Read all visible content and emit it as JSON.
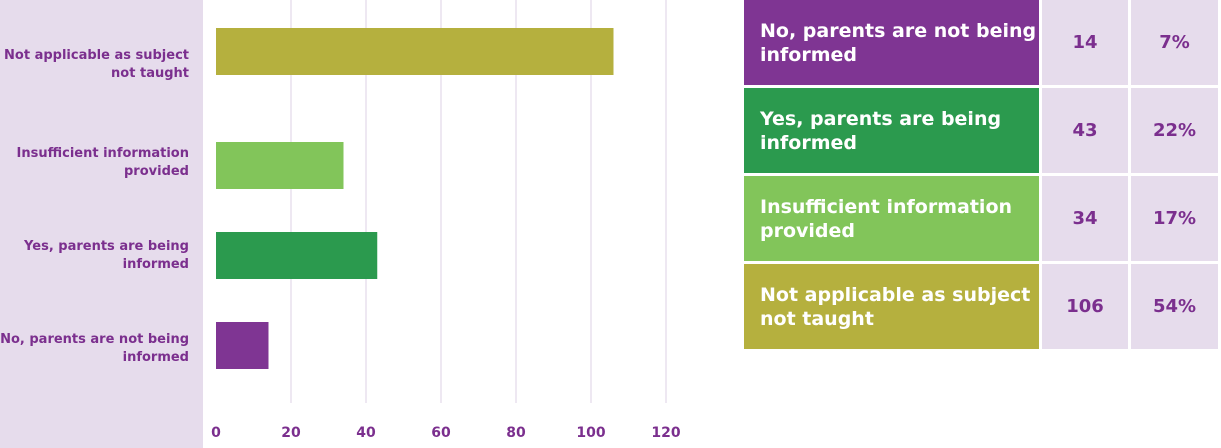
{
  "chart_data": {
    "type": "bar",
    "orientation": "horizontal",
    "categories": [
      "Not applicable as subject not taught",
      "Insufficient information provided",
      "Yes, parents are being informed",
      "No, parents are not being informed"
    ],
    "values": [
      106,
      34,
      43,
      14
    ],
    "colors": [
      "#b5b03e",
      "#82c55a",
      "#2b9a4e",
      "#7f3593"
    ],
    "xlim": [
      0,
      120
    ],
    "x_ticks": [
      0,
      20,
      40,
      60,
      80,
      100,
      120
    ],
    "grid": true
  },
  "table": {
    "rows": [
      {
        "label": "No, parents are not being informed",
        "count": "14",
        "percent": "7%",
        "color": "#7f3593"
      },
      {
        "label": "Yes, parents are being informed",
        "count": "43",
        "percent": "22%",
        "color": "#2b9a4e"
      },
      {
        "label": "Insufficient information provided",
        "count": "34",
        "percent": "17%",
        "color": "#82c55a"
      },
      {
        "label": "Not applicable as subject not taught",
        "count": "106",
        "percent": "54%",
        "color": "#b5b03e"
      }
    ]
  }
}
